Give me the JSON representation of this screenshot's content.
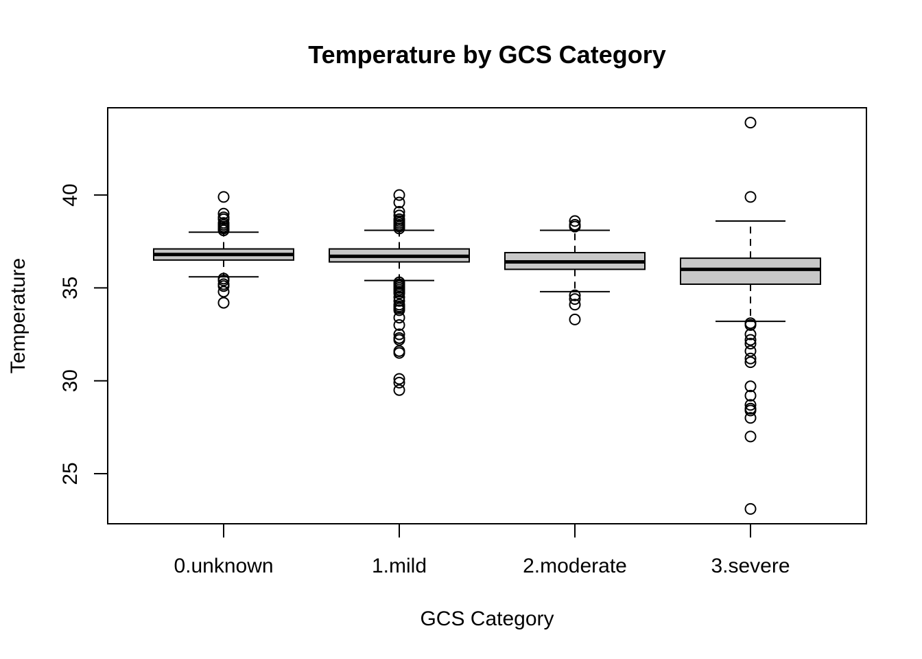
{
  "chart_data": {
    "type": "boxplot",
    "title": "Temperature by GCS Category",
    "xlabel": "GCS Category",
    "ylabel": "Temperature",
    "ylim": [
      22.3,
      44.7
    ],
    "yticks": [
      25,
      30,
      35,
      40
    ],
    "grid": false,
    "colors": {
      "box_fill": "#c8c8c8",
      "stroke": "#000000"
    },
    "categories": [
      "0.unknown",
      "1.mild",
      "2.moderate",
      "3.severe"
    ],
    "boxes": [
      {
        "category": "0.unknown",
        "whisker_low": 35.6,
        "q1": 36.5,
        "median": 36.8,
        "q3": 37.1,
        "whisker_high": 38.0,
        "outliers": [
          39.9,
          39.0,
          38.8,
          38.7,
          38.5,
          38.4,
          38.3,
          38.2,
          38.1,
          35.5,
          35.4,
          35.2,
          35.1,
          34.8,
          34.2
        ]
      },
      {
        "category": "1.mild",
        "whisker_low": 35.4,
        "q1": 36.4,
        "median": 36.7,
        "q3": 37.1,
        "whisker_high": 38.1,
        "outliers": [
          40.0,
          39.6,
          39.1,
          38.9,
          38.7,
          38.6,
          38.5,
          38.4,
          38.3,
          38.2,
          35.3,
          35.2,
          35.1,
          35.0,
          34.9,
          34.8,
          34.7,
          34.5,
          34.3,
          34.1,
          34.0,
          33.9,
          33.8,
          33.4,
          33.0,
          32.5,
          32.3,
          32.2,
          31.6,
          31.5,
          30.1,
          29.9,
          29.5
        ]
      },
      {
        "category": "2.moderate",
        "whisker_low": 34.8,
        "q1": 36.0,
        "median": 36.4,
        "q3": 36.9,
        "whisker_high": 38.1,
        "outliers": [
          38.6,
          38.4,
          38.3,
          34.6,
          34.4,
          34.1,
          33.3
        ]
      },
      {
        "category": "3.severe",
        "whisker_low": 33.2,
        "q1": 35.2,
        "median": 36.0,
        "q3": 36.6,
        "whisker_high": 38.6,
        "outliers": [
          43.9,
          39.9,
          33.1,
          33.0,
          32.5,
          32.2,
          32.0,
          31.6,
          31.2,
          31.0,
          29.7,
          29.2,
          28.7,
          28.5,
          28.4,
          28.0,
          27.0,
          23.1
        ]
      }
    ]
  }
}
